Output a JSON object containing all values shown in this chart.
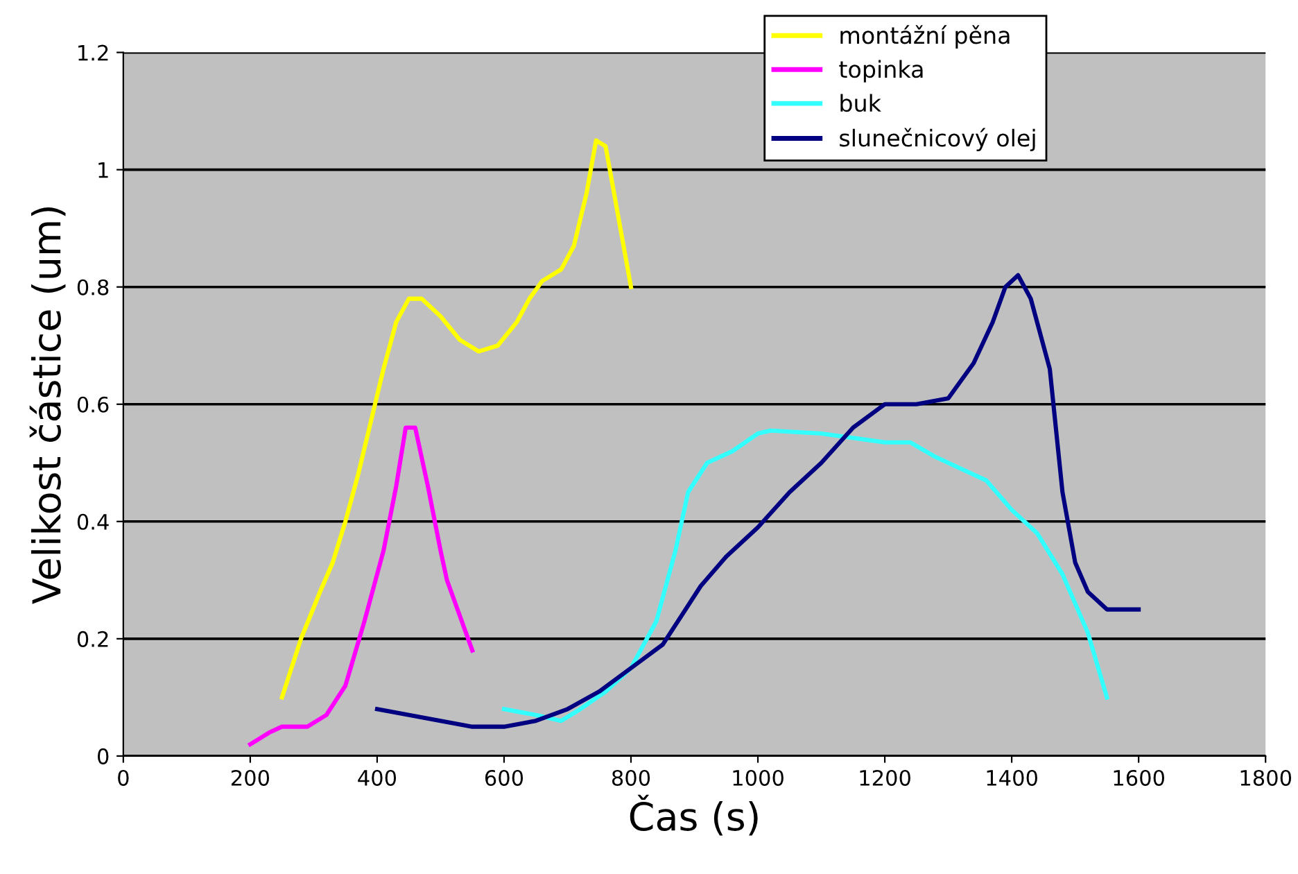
{
  "chart_data": {
    "type": "line",
    "xlabel": "Čas (s)",
    "ylabel": "Velikost částice (um)",
    "xlim": [
      0,
      1800
    ],
    "xticks": [
      0,
      200,
      400,
      600,
      800,
      1000,
      1200,
      1400,
      1600,
      1800
    ],
    "ylim": [
      0,
      1.2
    ],
    "yticks": [
      0,
      0.2,
      0.4,
      0.6,
      0.8,
      1,
      1.2
    ],
    "grid": "y",
    "legend": "top right",
    "marker": "none",
    "line_style": "solid",
    "series": [
      {
        "name": "montážní pěna",
        "color": "#ffff00",
        "x": [
          250,
          280,
          310,
          330,
          350,
          370,
          390,
          410,
          430,
          450,
          470,
          500,
          530,
          560,
          590,
          620,
          640,
          660,
          690,
          710,
          730,
          745,
          760,
          780,
          800
        ],
        "values": [
          0.1,
          0.2,
          0.28,
          0.33,
          0.4,
          0.48,
          0.57,
          0.66,
          0.74,
          0.78,
          0.78,
          0.75,
          0.71,
          0.69,
          0.7,
          0.74,
          0.78,
          0.81,
          0.83,
          0.87,
          0.96,
          1.05,
          1.04,
          0.92,
          0.8
        ]
      },
      {
        "name": "topinka",
        "color": "#ff00ff",
        "x": [
          200,
          230,
          250,
          270,
          290,
          320,
          350,
          380,
          410,
          430,
          445,
          460,
          480,
          500,
          510,
          530,
          550
        ],
        "values": [
          0.02,
          0.04,
          0.05,
          0.05,
          0.05,
          0.07,
          0.12,
          0.23,
          0.35,
          0.46,
          0.56,
          0.56,
          0.46,
          0.35,
          0.3,
          0.24,
          0.18
        ]
      },
      {
        "name": "buk",
        "color": "#33ffff",
        "x": [
          600,
          650,
          690,
          720,
          760,
          800,
          840,
          870,
          890,
          920,
          960,
          1000,
          1020,
          1100,
          1200,
          1240,
          1280,
          1320,
          1360,
          1400,
          1440,
          1480,
          1520,
          1550
        ],
        "values": [
          0.08,
          0.07,
          0.06,
          0.08,
          0.11,
          0.15,
          0.23,
          0.35,
          0.45,
          0.5,
          0.52,
          0.55,
          0.555,
          0.55,
          0.535,
          0.535,
          0.51,
          0.49,
          0.47,
          0.42,
          0.38,
          0.31,
          0.21,
          0.1
        ]
      },
      {
        "name": "slunečnicový olej",
        "color": "#000080",
        "x": [
          400,
          450,
          500,
          550,
          600,
          650,
          700,
          750,
          800,
          850,
          880,
          910,
          950,
          1000,
          1050,
          1100,
          1150,
          1200,
          1250,
          1300,
          1340,
          1370,
          1390,
          1410,
          1430,
          1460,
          1480,
          1500,
          1520,
          1550,
          1580,
          1600
        ],
        "values": [
          0.08,
          0.07,
          0.06,
          0.05,
          0.05,
          0.06,
          0.08,
          0.11,
          0.15,
          0.19,
          0.24,
          0.29,
          0.34,
          0.39,
          0.45,
          0.5,
          0.56,
          0.6,
          0.6,
          0.61,
          0.67,
          0.74,
          0.8,
          0.82,
          0.78,
          0.66,
          0.45,
          0.33,
          0.28,
          0.25,
          0.25,
          0.25
        ]
      }
    ]
  }
}
